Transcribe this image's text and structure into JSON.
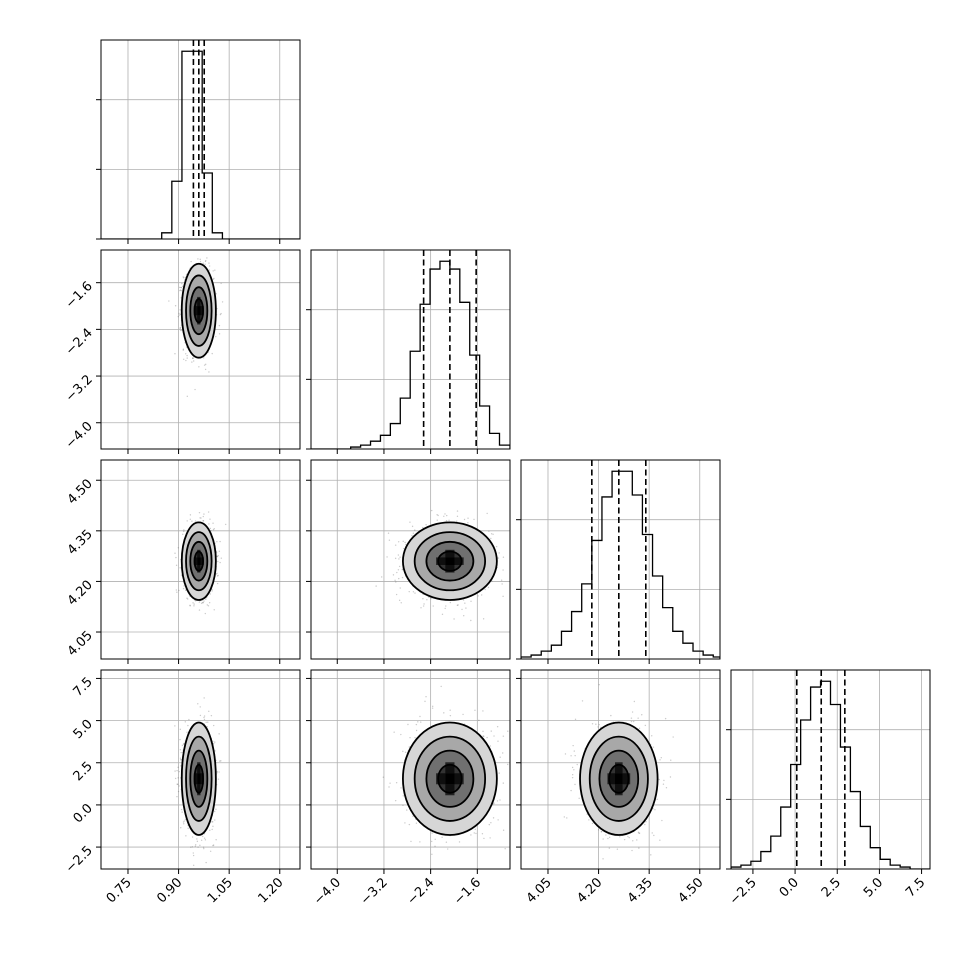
{
  "chart_data": {
    "type": "scatter",
    "title": "",
    "parameters": [
      {
        "range": [
          0.67,
          1.26
        ],
        "ticks": [
          0.75,
          0.9,
          1.05,
          1.2
        ],
        "tick_labels": [
          "0.75",
          "0.90",
          "1.05",
          "1.20"
        ]
      },
      {
        "range": [
          -4.45,
          -1.04
        ],
        "ticks": [
          -4.0,
          -3.2,
          -2.4,
          -1.6
        ],
        "tick_labels": [
          "−4.0",
          "−3.2",
          "−2.4",
          "−1.6"
        ]
      },
      {
        "range": [
          3.97,
          4.56
        ],
        "ticks": [
          4.05,
          4.2,
          4.35,
          4.5
        ],
        "tick_labels": [
          "4.05",
          "4.20",
          "4.35",
          "4.50"
        ]
      },
      {
        "range": [
          -3.8,
          8.0
        ],
        "ticks": [
          -2.5,
          0.0,
          2.5,
          5.0,
          7.5
        ],
        "tick_labels": [
          "−2.5",
          "0.0",
          "2.5",
          "5.0",
          "7.5"
        ]
      }
    ],
    "histograms": [
      {
        "parameter": 0,
        "bin_edges": [
          0.67,
          0.7,
          0.73,
          0.76,
          0.79,
          0.82,
          0.85,
          0.88,
          0.91,
          0.94,
          0.97,
          1.0,
          1.03,
          1.06,
          1.09,
          1.12,
          1.15,
          1.18,
          1.21,
          1.24,
          1.26
        ],
        "counts": [
          0,
          0,
          0,
          0,
          0,
          0,
          3,
          28,
          91,
          91,
          32,
          3,
          0,
          0,
          0,
          0,
          0,
          0,
          0,
          0
        ],
        "quantiles": [
          0.944,
          0.96,
          0.976
        ]
      },
      {
        "parameter": 1,
        "bin_edges": [
          -4.45,
          -4.28,
          -4.11,
          -3.94,
          -3.77,
          -3.6,
          -3.43,
          -3.26,
          -3.09,
          -2.92,
          -2.75,
          -2.58,
          -2.41,
          -2.24,
          -2.07,
          -1.9,
          -1.73,
          -1.56,
          -1.39,
          -1.22,
          -1.04
        ],
        "counts": [
          0,
          0,
          0,
          0,
          1,
          2,
          4,
          7,
          13,
          26,
          50,
          74,
          92,
          96,
          92,
          75,
          48,
          22,
          8,
          2
        ],
        "quantiles": [
          -2.52,
          -2.07,
          -1.62
        ]
      },
      {
        "parameter": 2,
        "bin_edges": [
          3.97,
          4.0,
          4.03,
          4.06,
          4.09,
          4.12,
          4.15,
          4.18,
          4.21,
          4.24,
          4.27,
          4.3,
          4.33,
          4.36,
          4.39,
          4.42,
          4.45,
          4.48,
          4.51,
          4.54,
          4.56
        ],
        "counts": [
          1,
          2,
          4,
          7,
          14,
          24,
          38,
          60,
          82,
          95,
          95,
          83,
          63,
          42,
          26,
          14,
          8,
          4,
          2,
          1
        ],
        "quantiles": [
          4.18,
          4.26,
          4.34
        ]
      },
      {
        "parameter": 3,
        "bin_edges": [
          -3.8,
          -3.21,
          -2.62,
          -2.03,
          -1.44,
          -0.85,
          -0.26,
          0.33,
          0.92,
          1.51,
          2.1,
          2.69,
          3.28,
          3.87,
          4.46,
          5.05,
          5.64,
          6.23,
          6.82,
          7.41,
          8.0
        ],
        "counts": [
          1,
          2,
          4,
          9,
          17,
          32,
          54,
          77,
          94,
          97,
          85,
          63,
          40,
          22,
          11,
          5,
          2,
          1,
          0,
          0
        ],
        "quantiles": [
          0.1,
          1.55,
          2.95
        ]
      }
    ],
    "joint_panels": [
      {
        "x": 0,
        "y": 1,
        "center": [
          0.96,
          -2.08
        ],
        "sd": [
          0.022,
          0.35
        ],
        "corr": 0.0
      },
      {
        "x": 0,
        "y": 2,
        "center": [
          0.96,
          4.26
        ],
        "sd": [
          0.022,
          0.05
        ],
        "corr": 0.0
      },
      {
        "x": 1,
        "y": 2,
        "center": [
          -2.07,
          4.26
        ],
        "sd": [
          0.35,
          0.05
        ],
        "corr": 0.0
      },
      {
        "x": 0,
        "y": 3,
        "center": [
          0.96,
          1.55
        ],
        "sd": [
          0.022,
          1.45
        ],
        "corr": 0.0
      },
      {
        "x": 1,
        "y": 3,
        "center": [
          -2.07,
          1.55
        ],
        "sd": [
          0.35,
          1.45
        ],
        "corr": 0.0
      },
      {
        "x": 2,
        "y": 3,
        "center": [
          4.26,
          1.55
        ],
        "sd": [
          0.05,
          1.45
        ],
        "corr": 0.0
      }
    ],
    "contour_levels_sigma": [
      0.5,
      1.0,
      1.5,
      2.0
    ],
    "grid": true,
    "colors": {
      "points": "#666666",
      "density": "#000000",
      "lines": "#000000",
      "grid": "#b0b0b0"
    }
  }
}
